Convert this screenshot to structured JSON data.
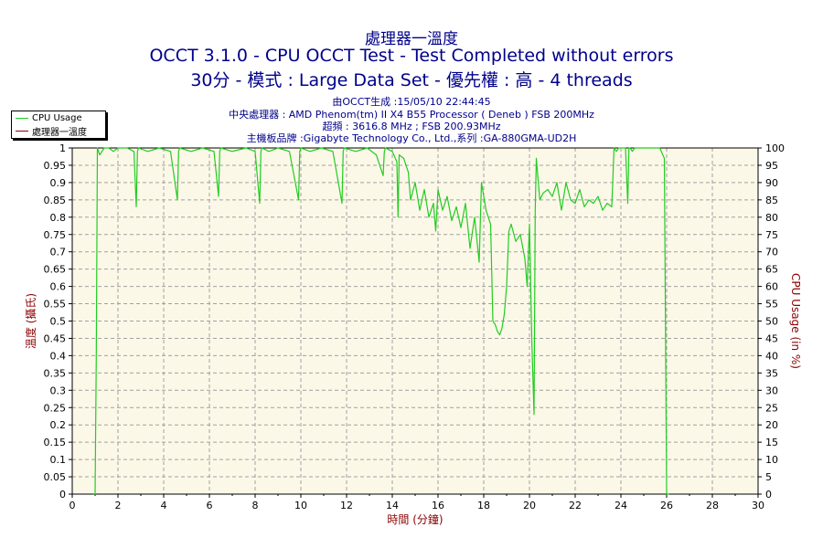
{
  "header": {
    "title_line1": "處理器一溫度",
    "title_line2": "OCCT 3.1.0 - CPU OCCT Test - Test Completed without errors",
    "title_line3": "30分 - 模式 : Large Data Set - 優先權 : 高 - 4 threads",
    "info": [
      "由OCCT生成 :15/05/10 22:44:45",
      "中央處理器 : AMD Phenom(tm) II X4 B55 Processor ( Deneb ) FSB 200MHz",
      "超頻 : 3616.8 MHz ; FSB 200.93MHz",
      "主機板品牌 :Gigabyte Technology Co., Ltd.,系列 :GA-880GMA-UD2H"
    ]
  },
  "colors": {
    "title": "#00008b",
    "plot_bg": "#fcf8e8",
    "cpu_usage": "#22cc22",
    "temperature": "#8b0000",
    "axis_label": "#8b0000"
  },
  "legend": {
    "items": [
      {
        "label": "CPU Usage",
        "color": "#22cc22"
      },
      {
        "label": "處理器一溫度",
        "color": "#8b0000"
      }
    ]
  },
  "chart_data": {
    "type": "line",
    "xlabel": "時間 (分鐘)",
    "ylabel_left": "溫度 (攝氏)",
    "ylabel_right": "CPU Usage (in %)",
    "xlim": [
      0,
      30
    ],
    "ylim_left": [
      0,
      1
    ],
    "ylim_right": [
      0,
      100
    ],
    "x_ticks": [
      0,
      2,
      4,
      6,
      8,
      10,
      12,
      14,
      16,
      18,
      20,
      22,
      24,
      26,
      28,
      30
    ],
    "y_left_ticks": [
      0,
      0.05,
      0.1,
      0.15,
      0.2,
      0.25,
      0.3,
      0.35,
      0.4,
      0.45,
      0.5,
      0.55,
      0.6,
      0.65,
      0.7,
      0.75,
      0.8,
      0.85,
      0.9,
      0.95,
      1
    ],
    "y_right_ticks": [
      0,
      5,
      10,
      15,
      20,
      25,
      30,
      35,
      40,
      45,
      50,
      55,
      60,
      65,
      70,
      75,
      80,
      85,
      90,
      95,
      100
    ],
    "grid": true,
    "legend_position": "top-left",
    "series": [
      {
        "name": "CPU Usage",
        "axis": "right",
        "x": [
          0.95,
          1.0,
          1.05,
          1.1,
          1.2,
          1.3,
          1.4,
          1.6,
          1.8,
          2.0,
          2.4,
          2.7,
          2.8,
          2.85,
          2.9,
          3.3,
          3.8,
          4.3,
          4.6,
          4.65,
          4.7,
          5.2,
          5.7,
          6.2,
          6.4,
          6.45,
          6.5,
          7.0,
          7.6,
          8.0,
          8.2,
          8.25,
          8.3,
          8.6,
          9.0,
          9.5,
          9.9,
          9.95,
          10.0,
          10.4,
          10.9,
          11.4,
          11.8,
          11.85,
          11.9,
          12.4,
          12.9,
          13.3,
          13.6,
          13.65,
          13.7,
          14.0,
          14.2,
          14.25,
          14.3,
          14.5,
          14.7,
          14.8,
          15.0,
          15.2,
          15.4,
          15.6,
          15.8,
          15.9,
          16.0,
          16.2,
          16.4,
          16.6,
          16.8,
          17.0,
          17.2,
          17.4,
          17.6,
          17.8,
          17.9,
          18.1,
          18.3,
          18.4,
          18.5,
          18.6,
          18.7,
          18.8,
          18.9,
          19.0,
          19.1,
          19.2,
          19.4,
          19.6,
          19.8,
          19.9,
          20.0,
          20.1,
          20.2,
          20.25,
          20.3,
          20.45,
          20.6,
          20.8,
          21.0,
          21.2,
          21.4,
          21.6,
          21.8,
          22.0,
          22.2,
          22.4,
          22.6,
          22.8,
          23.0,
          23.2,
          23.4,
          23.6,
          23.7,
          23.8,
          23.9,
          24.0,
          24.2,
          24.3,
          24.35,
          24.4,
          24.5,
          24.6,
          24.7,
          25.0,
          25.4,
          25.7,
          25.9,
          26.0,
          26.05,
          26.1
        ],
        "values": [
          0,
          0,
          40,
          100,
          98,
          99,
          100,
          100,
          99,
          100,
          100,
          99,
          83,
          99,
          100,
          99,
          100,
          99,
          85,
          99,
          100,
          99,
          100,
          99,
          86,
          99,
          100,
          99,
          100,
          99,
          84,
          99,
          100,
          99,
          100,
          99,
          85,
          99,
          100,
          99,
          100,
          99,
          84,
          99,
          100,
          99,
          100,
          98,
          92,
          99,
          100,
          99,
          96,
          80,
          98,
          97,
          93,
          85,
          90,
          82,
          88,
          80,
          84,
          76,
          88,
          82,
          86,
          79,
          83,
          77,
          84,
          71,
          80,
          67,
          90,
          82,
          78,
          50,
          49,
          47,
          46,
          48,
          52,
          60,
          76,
          78,
          73,
          75,
          68,
          60,
          78,
          45,
          23,
          82,
          97,
          85,
          87,
          88,
          86,
          90,
          82,
          90,
          85,
          84,
          88,
          83,
          85,
          84,
          86,
          82,
          84,
          83,
          100,
          99,
          100,
          100,
          100,
          84,
          100,
          100,
          99,
          100,
          100,
          100,
          100,
          100,
          97,
          0,
          0,
          0
        ]
      },
      {
        "name": "處理器一溫度",
        "axis": "left",
        "x": [],
        "values": []
      }
    ]
  }
}
